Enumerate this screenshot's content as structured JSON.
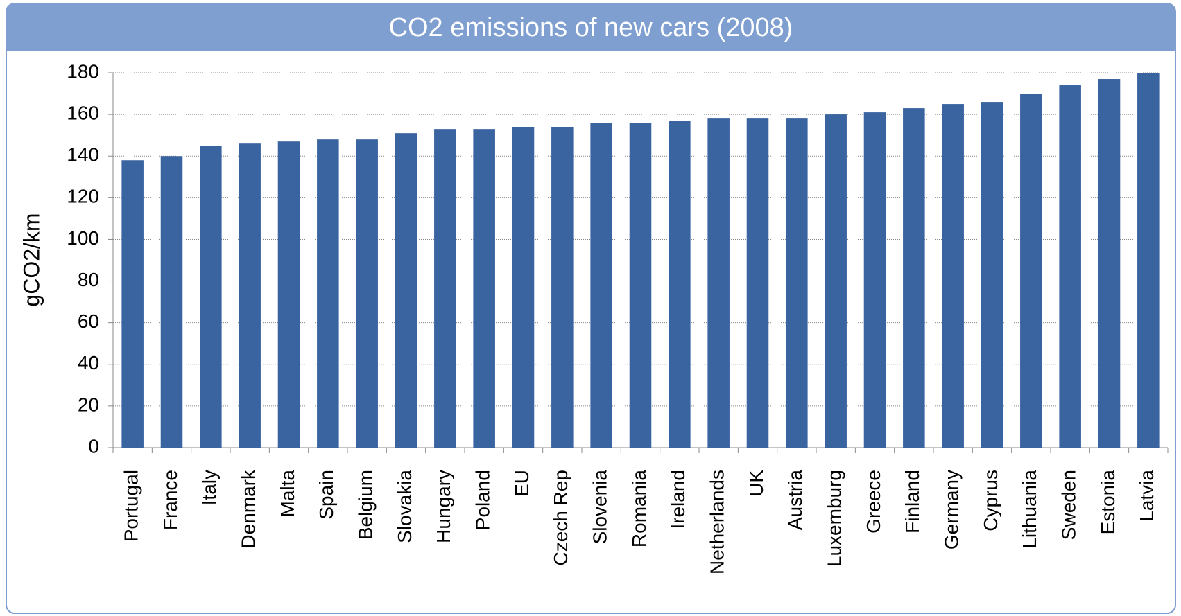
{
  "chart_data": {
    "type": "bar",
    "title": "CO2 emissions of new cars (2008)",
    "ylabel": "gCO2/km",
    "categories": [
      "Portugal",
      "France",
      "Italy",
      "Denmark",
      "Malta",
      "Spain",
      "Belgium",
      "Slovakia",
      "Hungary",
      "Poland",
      "EU",
      "Czech Rep",
      "Slovenia",
      "Romania",
      "Ireland",
      "Netherlands",
      "UK",
      "Austria",
      "Luxemburg",
      "Greece",
      "Finland",
      "Germany",
      "Cyprus",
      "Lithuania",
      "Sweden",
      "Estonia",
      "Latvia"
    ],
    "values": [
      138,
      140,
      145,
      146,
      147,
      148,
      148,
      151,
      153,
      153,
      154,
      154,
      156,
      156,
      157,
      158,
      158,
      158,
      160,
      161,
      163,
      165,
      166,
      170,
      174,
      177,
      180
    ],
    "color": "#3a64a0",
    "ylim": [
      0,
      180
    ],
    "yticks": [
      0,
      20,
      40,
      60,
      80,
      100,
      120,
      140,
      160,
      180
    ],
    "grid": true
  }
}
